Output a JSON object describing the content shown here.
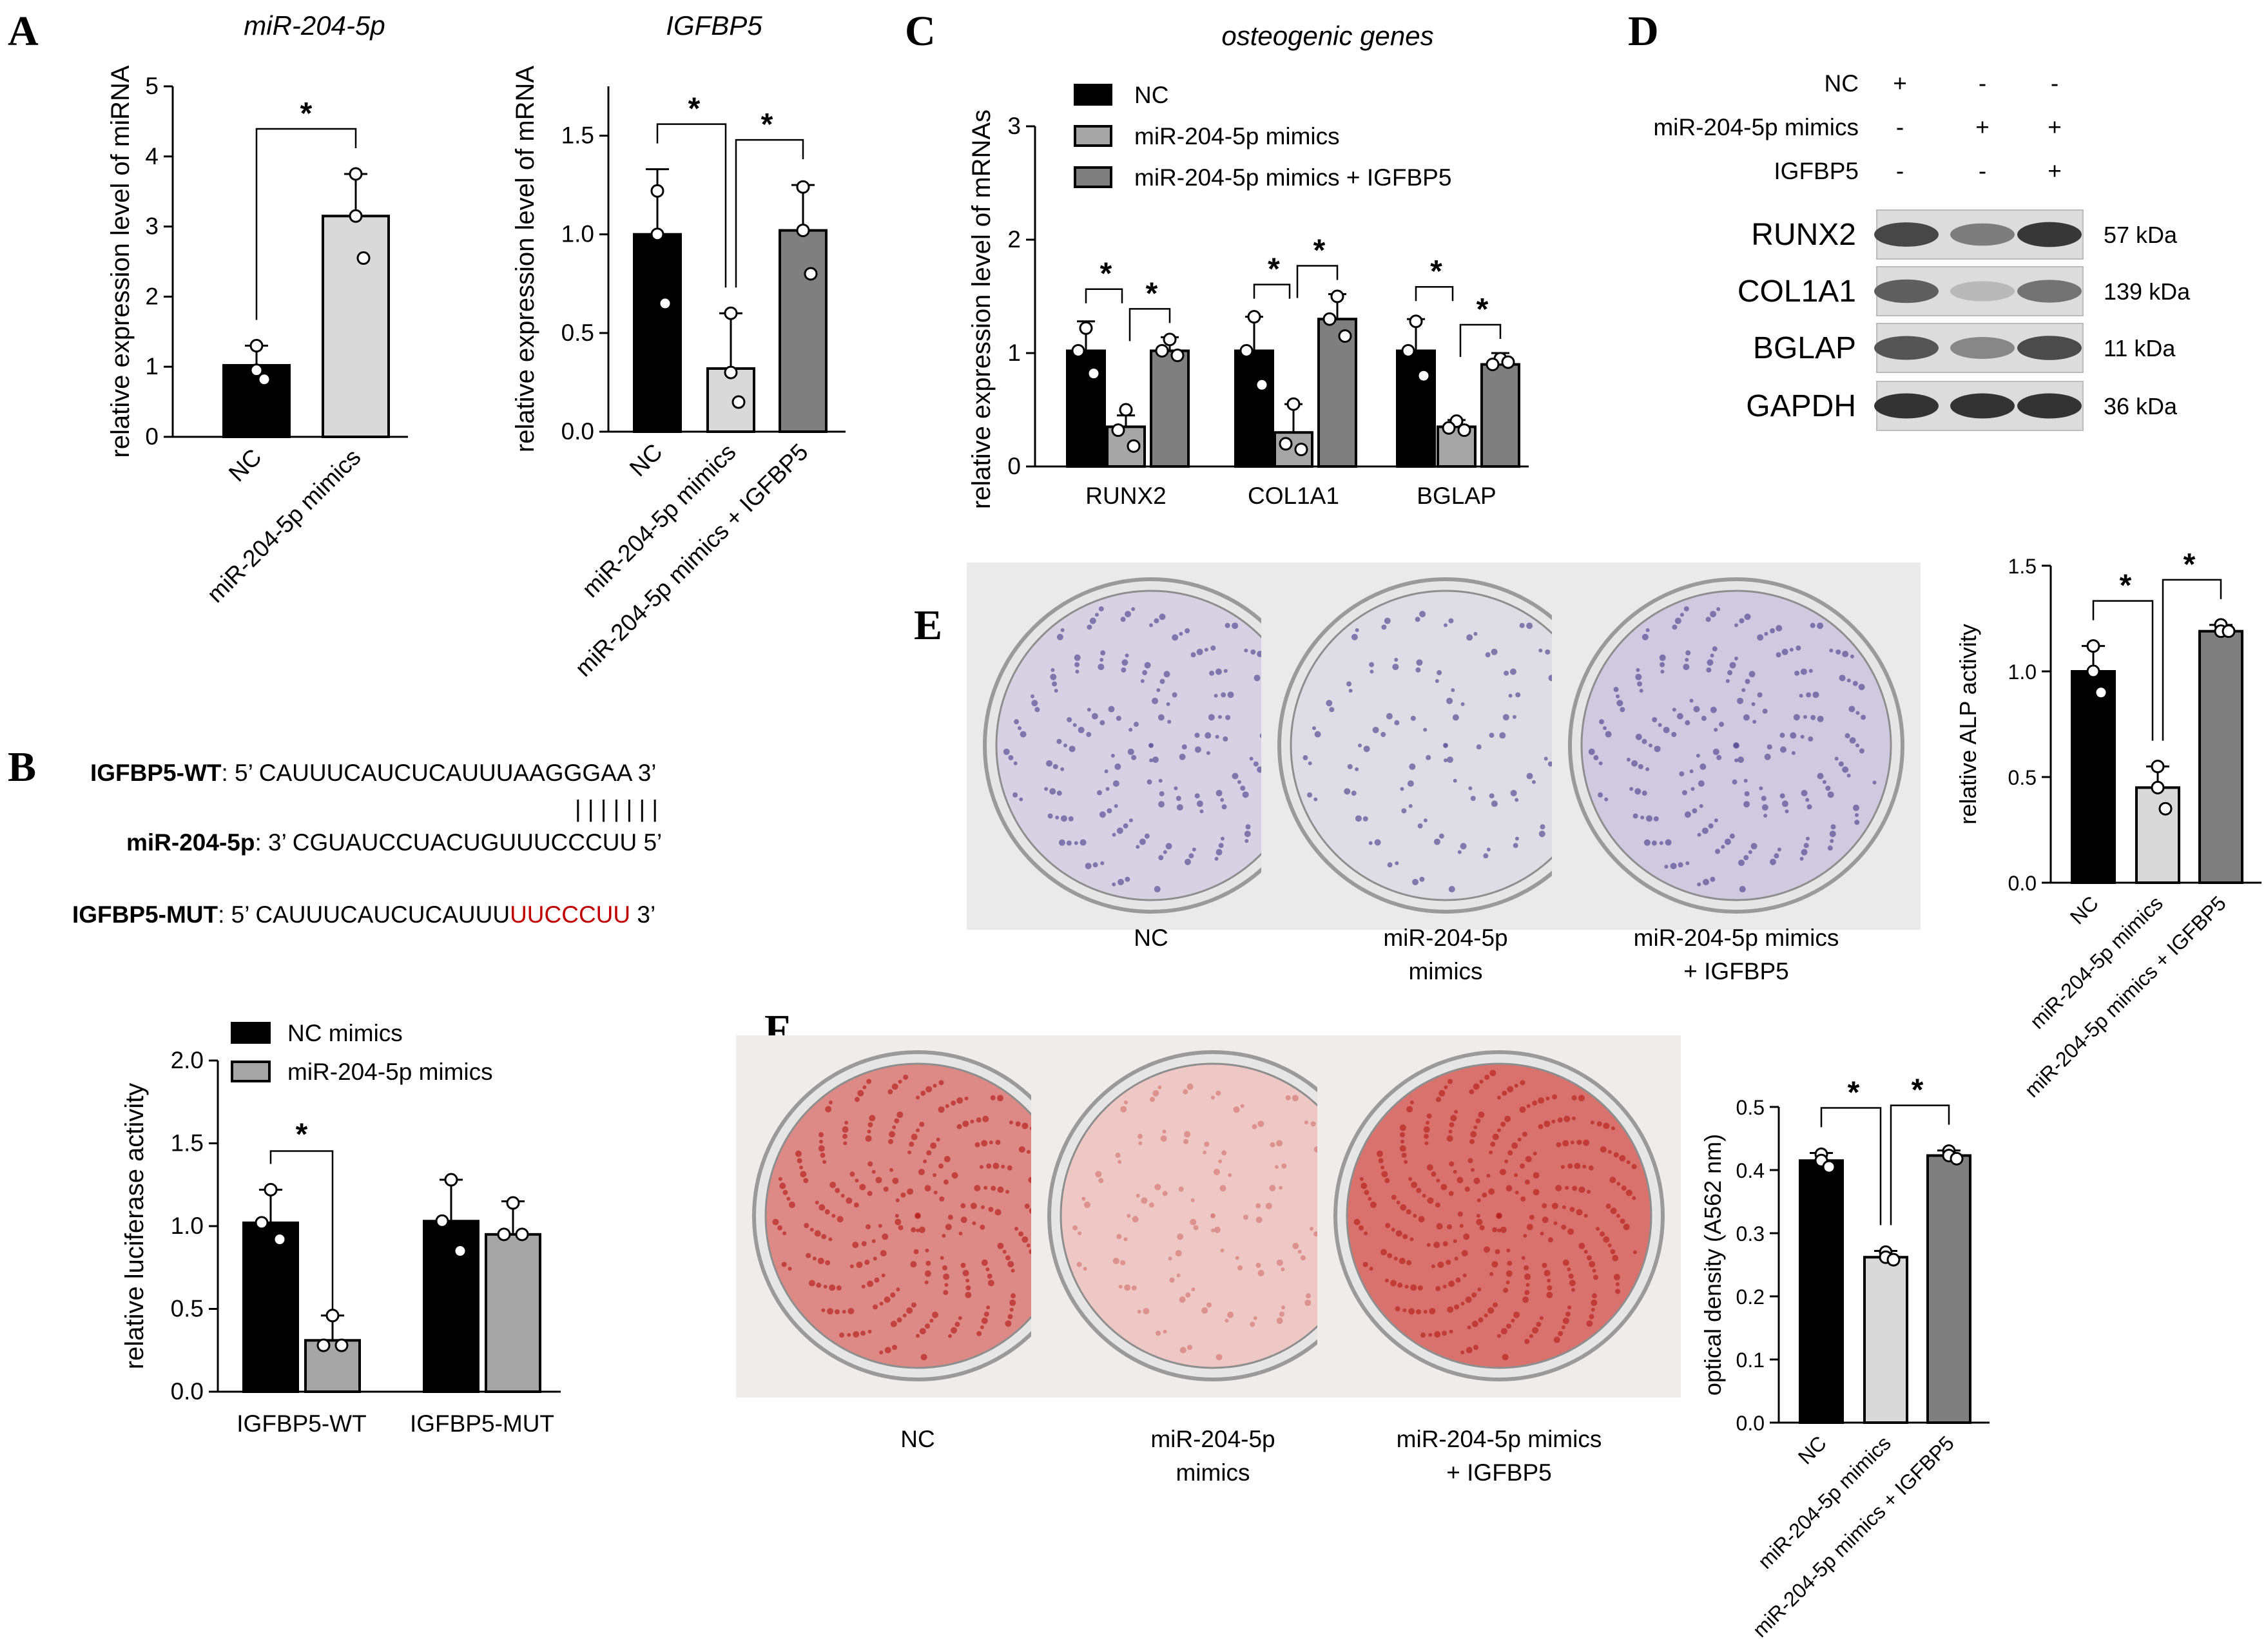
{
  "panels": {
    "A": "A",
    "B": "B",
    "C": "C",
    "D": "D",
    "E": "E",
    "F": "F"
  },
  "colors": {
    "black": "#000000",
    "light_gray": "#d9d9d9",
    "mid_gray": "#a6a6a6",
    "dark_gray": "#7f7f7f",
    "mut_red": "#c00000",
    "alp_stain": "#6a5fa0",
    "alizarin": "#c8302e"
  },
  "sig": "*",
  "seqB": {
    "wt_label": "IGFBP5-WT",
    "wt_seq": ": 5’ CAUUUCAUCUCAUUUAAGGGAA 3’",
    "pairs": "| | | | | | |",
    "mir_label": "miR-204-5p",
    "mir_seq": ": 3’ CGUAUCCUACUGUUUCCCUU 5’",
    "mut_label": "IGFBP5-MUT",
    "mut_prefix": ": 5’ CAUUUCAUCUCAUUU",
    "mut_red": "UUCCCUU",
    "mut_suffix": " 3’"
  },
  "westernD": {
    "rows": [
      "NC",
      "miR-204-5p mimics",
      "IGFBP5"
    ],
    "signs": [
      [
        "+",
        "-",
        "-"
      ],
      [
        "-",
        "+",
        "+"
      ],
      [
        "-",
        "-",
        "+"
      ]
    ],
    "bands": [
      {
        "name": "RUNX2",
        "kda": "57 kDa",
        "intensity": [
          0.82,
          0.55,
          0.9
        ]
      },
      {
        "name": "COL1A1",
        "kda": "139 kDa",
        "intensity": [
          0.7,
          0.25,
          0.6
        ]
      },
      {
        "name": "BGLAP",
        "kda": "11 kDa",
        "intensity": [
          0.75,
          0.5,
          0.8
        ]
      },
      {
        "name": "GAPDH",
        "kda": "36 kDa",
        "intensity": [
          0.92,
          0.92,
          0.92
        ]
      }
    ]
  },
  "photosE": {
    "labels": [
      [
        "NC"
      ],
      [
        "miR-204-5p",
        "mimics"
      ],
      [
        "miR-204-5p mimics",
        "+ IGFBP5"
      ]
    ]
  },
  "photosF": {
    "labels": [
      [
        "NC"
      ],
      [
        "miR-204-5p",
        "mimics"
      ],
      [
        "miR-204-5p mimics",
        "+ IGFBP5"
      ]
    ]
  },
  "chart_data": [
    {
      "id": "A1",
      "type": "bar",
      "title": "miR-204-5p",
      "ylabel": "relative expression level of miRNA",
      "categories": [
        "NC",
        "miR-204-5p mimics"
      ],
      "values": [
        1.02,
        3.15
      ],
      "errors": [
        0.28,
        0.6
      ],
      "points": [
        [
          1.3,
          0.95,
          0.82
        ],
        [
          3.75,
          3.15,
          2.55
        ]
      ],
      "ylim": [
        0,
        5
      ],
      "yticks": [
        "0",
        "1",
        "2",
        "3",
        "4",
        "5"
      ],
      "sig": [
        {
          "from": 0,
          "to": 1,
          "label": "*"
        }
      ]
    },
    {
      "id": "A2",
      "type": "bar",
      "title": "IGFBP5",
      "ylabel": "relative expression level of mRNA",
      "categories": [
        "NC",
        "miR-204-5p mimics",
        "miR-204-5p mimics + IGFBP5"
      ],
      "values": [
        1.0,
        0.32,
        1.02
      ],
      "errors": [
        0.33,
        0.28,
        0.23
      ],
      "points": [
        [
          1.22,
          1.0,
          0.65
        ],
        [
          0.6,
          0.3,
          0.15
        ],
        [
          1.24,
          1.02,
          0.8
        ]
      ],
      "ylim": [
        0,
        1.75
      ],
      "yticks": [
        "0.0",
        "0.5",
        "1.0",
        "1.5"
      ],
      "sig": [
        {
          "from": 0,
          "to": 1,
          "label": "*"
        },
        {
          "from": 1,
          "to": 2,
          "label": "*"
        }
      ]
    },
    {
      "id": "C",
      "type": "bar",
      "title": "osteogenic genes",
      "ylabel": "relative expression level of mRNAs",
      "categories": [
        "RUNX2",
        "COL1A1",
        "BGLAP"
      ],
      "series": [
        {
          "name": "NC",
          "values": [
            1.02,
            1.02,
            1.02
          ],
          "errors": [
            0.26,
            0.3,
            0.28
          ],
          "points": [
            [
              1.22,
              1.02,
              0.82
            ],
            [
              1.32,
              1.02,
              0.72
            ],
            [
              1.28,
              1.02,
              0.8
            ]
          ]
        },
        {
          "name": "miR-204-5p mimics",
          "values": [
            0.35,
            0.3,
            0.35
          ],
          "errors": [
            0.1,
            0.25,
            0.06
          ],
          "points": [
            [
              0.5,
              0.32,
              0.18
            ],
            [
              0.55,
              0.2,
              0.15
            ],
            [
              0.4,
              0.34,
              0.32
            ]
          ]
        },
        {
          "name": "miR-204-5p mimics + IGFBP5",
          "values": [
            1.02,
            1.3,
            0.9
          ],
          "errors": [
            0.12,
            0.22,
            0.1
          ],
          "points": [
            [
              1.12,
              1.02,
              0.98
            ],
            [
              1.5,
              1.3,
              1.15
            ],
            [
              0.95,
              0.9,
              0.92
            ]
          ]
        }
      ],
      "ylim": [
        0,
        3
      ],
      "yticks": [
        "0",
        "1",
        "2",
        "3"
      ],
      "sig": [
        [
          "*",
          "*"
        ],
        [
          "*",
          "*"
        ],
        [
          "*",
          "*"
        ]
      ]
    },
    {
      "id": "E",
      "type": "bar",
      "title": "",
      "ylabel": "relative ALP activity",
      "categories": [
        "NC",
        "miR-204-5p mimics",
        "miR-204-5p mimics + IGFBP5"
      ],
      "values": [
        1.0,
        0.45,
        1.19
      ],
      "errors": [
        0.12,
        0.1,
        0.03
      ],
      "points": [
        [
          1.12,
          1.0,
          0.9
        ],
        [
          0.55,
          0.45,
          0.35
        ],
        [
          1.22,
          1.19,
          1.19
        ]
      ],
      "ylim": [
        0,
        1.5
      ],
      "yticks": [
        "0.0",
        "0.5",
        "1.0",
        "1.5"
      ],
      "sig": [
        {
          "from": 0,
          "to": 1,
          "label": "*"
        },
        {
          "from": 1,
          "to": 2,
          "label": "*"
        }
      ]
    },
    {
      "id": "B",
      "type": "bar",
      "title": "",
      "ylabel": "relative luciferase activity",
      "categories": [
        "IGFBP5-WT",
        "IGFBP5-MUT"
      ],
      "series": [
        {
          "name": "NC mimics",
          "values": [
            1.02,
            1.03
          ],
          "errors": [
            0.2,
            0.25
          ],
          "points": [
            [
              1.22,
              1.02,
              0.92
            ],
            [
              1.28,
              1.03,
              0.85
            ]
          ]
        },
        {
          "name": "miR-204-5p mimics",
          "values": [
            0.31,
            0.95
          ],
          "errors": [
            0.15,
            0.2
          ],
          "points": [
            [
              0.46,
              0.28,
              0.28
            ],
            [
              1.14,
              0.95,
              0.95
            ]
          ]
        }
      ],
      "ylim": [
        0,
        2.0
      ],
      "yticks": [
        "0.0",
        "0.5",
        "1.0",
        "1.5",
        "2.0"
      ],
      "sig": [
        {
          "group": 0,
          "label": "*"
        }
      ]
    },
    {
      "id": "F",
      "type": "bar",
      "title": "",
      "ylabel": "optical density (A562 nm)",
      "categories": [
        "NC",
        "miR-204-5p mimics",
        "miR-204-5p mimics + IGFBP5"
      ],
      "values": [
        0.415,
        0.262,
        0.423
      ],
      "errors": [
        0.012,
        0.01,
        0.008
      ],
      "points": [
        [
          0.425,
          0.415,
          0.405
        ],
        [
          0.27,
          0.262,
          0.258
        ],
        [
          0.43,
          0.423,
          0.418
        ]
      ],
      "ylim": [
        0,
        0.5
      ],
      "yticks": [
        "0.0",
        "0.1",
        "0.2",
        "0.3",
        "0.4",
        "0.5"
      ],
      "sig": [
        {
          "from": 0,
          "to": 1,
          "label": "*"
        },
        {
          "from": 1,
          "to": 2,
          "label": "*"
        }
      ]
    }
  ]
}
